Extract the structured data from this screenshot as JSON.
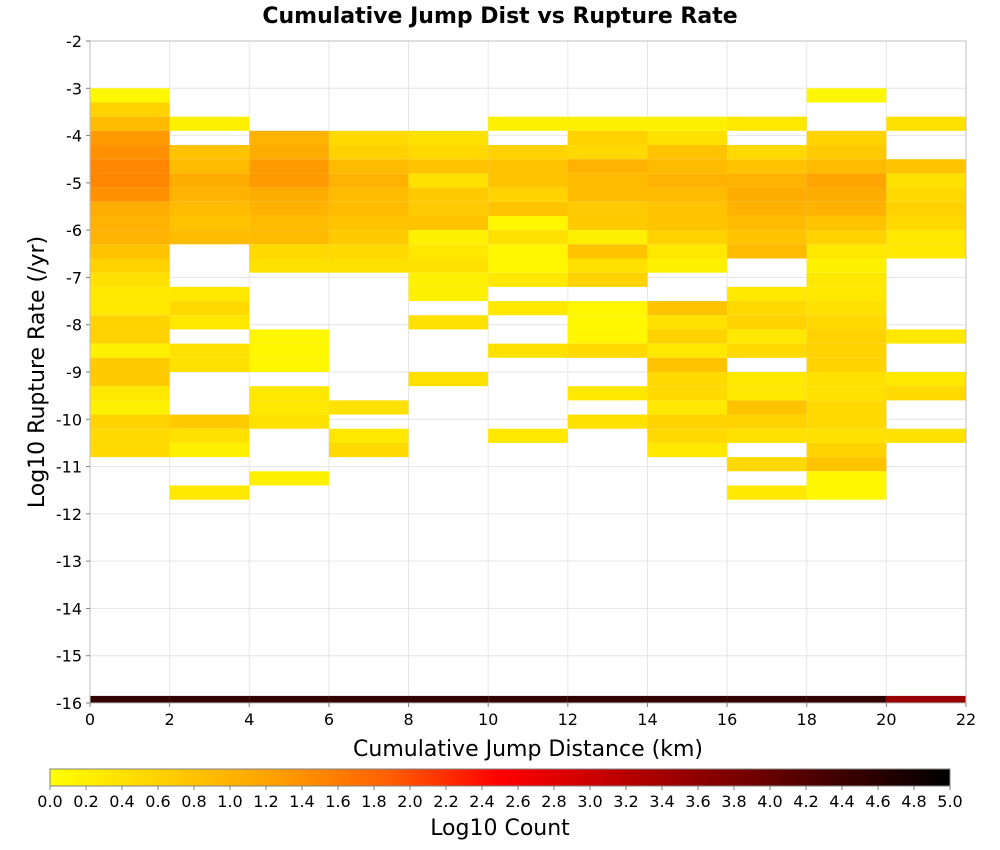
{
  "chart_data": {
    "type": "heatmap",
    "title": "Cumulative Jump Dist vs Rupture Rate",
    "xlabel": "Cumulative Jump Distance (km)",
    "ylabel": "Log10 Rupture Rate (/yr)",
    "xlim": [
      0,
      22
    ],
    "ylim": [
      -16,
      -2
    ],
    "x_ticks": [
      "0",
      "2",
      "4",
      "6",
      "8",
      "10",
      "12",
      "14",
      "16",
      "18",
      "20",
      "22"
    ],
    "y_ticks": [
      "-2",
      "-3",
      "-4",
      "-5",
      "-6",
      "-7",
      "-8",
      "-9",
      "-10",
      "-11",
      "-12",
      "-13",
      "-14",
      "-15",
      "-16"
    ],
    "grid": true,
    "bin_width_x": 2,
    "bin_height_y": 0.3,
    "colorbar": {
      "label": "Log10 Count",
      "range": [
        0,
        5
      ],
      "ticks": [
        "0.0",
        "0.2",
        "0.4",
        "0.6",
        "0.8",
        "1.0",
        "1.2",
        "1.4",
        "1.6",
        "1.8",
        "2.0",
        "2.2",
        "2.4",
        "2.6",
        "2.8",
        "3.0",
        "3.2",
        "3.4",
        "3.6",
        "3.8",
        "4.0",
        "4.2",
        "4.4",
        "4.6",
        "4.8",
        "5.0"
      ],
      "colors": [
        "#ffff00",
        "#ffd000",
        "#ffa000",
        "#ff6000",
        "#ff0000",
        "#c00000",
        "#800000",
        "#400000",
        "#000000"
      ]
    },
    "columns": [
      {
        "x0": 0,
        "x1": 2,
        "cells": [
          [
            -3.3,
            0.1
          ],
          [
            -3.6,
            0.6
          ],
          [
            -3.9,
            0.9
          ],
          [
            -4.2,
            1.3
          ],
          [
            -4.5,
            1.4
          ],
          [
            -4.8,
            1.5
          ],
          [
            -5.1,
            1.5
          ],
          [
            -5.4,
            1.4
          ],
          [
            -5.7,
            1.1
          ],
          [
            -6.0,
            1.0
          ],
          [
            -6.3,
            1.0
          ],
          [
            -6.6,
            0.8
          ],
          [
            -6.9,
            0.6
          ],
          [
            -7.2,
            0.4
          ],
          [
            -7.5,
            0.3
          ],
          [
            -7.8,
            0.3
          ],
          [
            -8.1,
            0.6
          ],
          [
            -8.4,
            0.6
          ],
          [
            -8.7,
            0.2
          ],
          [
            -9.0,
            0.7
          ],
          [
            -9.3,
            0.7
          ],
          [
            -9.6,
            0.3
          ],
          [
            -9.9,
            0.2
          ],
          [
            -10.2,
            0.6
          ],
          [
            -10.5,
            0.5
          ],
          [
            -10.8,
            0.5
          ]
        ]
      },
      {
        "x0": 2,
        "x1": 4,
        "cells": [
          [
            -3.9,
            0.2
          ],
          [
            -4.5,
            0.8
          ],
          [
            -4.8,
            0.9
          ],
          [
            -5.1,
            1.1
          ],
          [
            -5.4,
            1.0
          ],
          [
            -5.7,
            0.9
          ],
          [
            -6.0,
            0.8
          ],
          [
            -6.3,
            0.9
          ],
          [
            -7.5,
            0.3
          ],
          [
            -7.8,
            0.5
          ],
          [
            -8.1,
            0.3
          ],
          [
            -8.7,
            0.4
          ],
          [
            -9.0,
            0.4
          ],
          [
            -10.2,
            0.7
          ],
          [
            -10.5,
            0.4
          ],
          [
            -10.8,
            0.2
          ],
          [
            -11.7,
            0.3
          ]
        ]
      },
      {
        "x0": 4,
        "x1": 6,
        "cells": [
          [
            -4.2,
            1.0
          ],
          [
            -4.5,
            1.1
          ],
          [
            -4.8,
            1.3
          ],
          [
            -5.1,
            1.3
          ],
          [
            -5.4,
            1.1
          ],
          [
            -5.7,
            1.0
          ],
          [
            -6.0,
            0.9
          ],
          [
            -6.3,
            0.9
          ],
          [
            -6.6,
            0.5
          ],
          [
            -6.9,
            0.4
          ],
          [
            -8.4,
            0.1
          ],
          [
            -8.7,
            0.1
          ],
          [
            -9.0,
            0.1
          ],
          [
            -9.6,
            0.3
          ],
          [
            -9.9,
            0.3
          ],
          [
            -10.2,
            0.4
          ],
          [
            -11.4,
            0.2
          ]
        ]
      },
      {
        "x0": 6,
        "x1": 8,
        "cells": [
          [
            -4.2,
            0.5
          ],
          [
            -4.5,
            0.6
          ],
          [
            -4.8,
            0.9
          ],
          [
            -5.1,
            1.0
          ],
          [
            -5.4,
            0.9
          ],
          [
            -5.7,
            0.9
          ],
          [
            -6.0,
            0.8
          ],
          [
            -6.3,
            0.7
          ],
          [
            -6.6,
            0.5
          ],
          [
            -6.9,
            0.4
          ],
          [
            -9.9,
            0.4
          ],
          [
            -10.5,
            0.3
          ],
          [
            -10.8,
            0.5
          ]
        ]
      },
      {
        "x0": 8,
        "x1": 10,
        "cells": [
          [
            -4.2,
            0.4
          ],
          [
            -4.5,
            0.5
          ],
          [
            -4.8,
            0.8
          ],
          [
            -5.1,
            0.4
          ],
          [
            -5.4,
            0.7
          ],
          [
            -5.7,
            0.7
          ],
          [
            -6.0,
            0.8
          ],
          [
            -6.3,
            0.2
          ],
          [
            -6.6,
            0.3
          ],
          [
            -6.9,
            0.4
          ],
          [
            -7.2,
            0.2
          ],
          [
            -7.5,
            0.2
          ],
          [
            -8.1,
            0.4
          ],
          [
            -9.3,
            0.4
          ]
        ]
      },
      {
        "x0": 10,
        "x1": 12,
        "cells": [
          [
            -3.9,
            0.2
          ],
          [
            -4.5,
            0.6
          ],
          [
            -4.8,
            0.8
          ],
          [
            -5.1,
            0.8
          ],
          [
            -5.4,
            0.6
          ],
          [
            -5.7,
            0.8
          ],
          [
            -6.0,
            0.1
          ],
          [
            -6.3,
            0.4
          ],
          [
            -6.6,
            0.1
          ],
          [
            -6.9,
            0.1
          ],
          [
            -7.2,
            0.3
          ],
          [
            -7.8,
            0.3
          ],
          [
            -8.7,
            0.4
          ],
          [
            -10.5,
            0.3
          ]
        ]
      },
      {
        "x0": 12,
        "x1": 14,
        "cells": [
          [
            -3.9,
            0.2
          ],
          [
            -4.2,
            0.6
          ],
          [
            -4.5,
            0.5
          ],
          [
            -4.8,
            1.0
          ],
          [
            -5.1,
            0.9
          ],
          [
            -5.4,
            0.9
          ],
          [
            -5.7,
            0.7
          ],
          [
            -6.0,
            0.7
          ],
          [
            -6.3,
            0.2
          ],
          [
            -6.6,
            0.8
          ],
          [
            -6.9,
            0.4
          ],
          [
            -7.2,
            0.6
          ],
          [
            -7.8,
            0.1
          ],
          [
            -8.1,
            0.1
          ],
          [
            -8.4,
            0.1
          ],
          [
            -8.7,
            0.5
          ],
          [
            -9.6,
            0.3
          ],
          [
            -10.2,
            0.4
          ]
        ]
      },
      {
        "x0": 14,
        "x1": 16,
        "cells": [
          [
            -3.9,
            0.2
          ],
          [
            -4.2,
            0.4
          ],
          [
            -4.5,
            0.8
          ],
          [
            -4.8,
            0.9
          ],
          [
            -5.1,
            1.0
          ],
          [
            -5.4,
            0.9
          ],
          [
            -5.7,
            0.8
          ],
          [
            -6.0,
            0.8
          ],
          [
            -6.3,
            0.6
          ],
          [
            -6.6,
            0.3
          ],
          [
            -6.9,
            0.2
          ],
          [
            -7.8,
            0.8
          ],
          [
            -8.1,
            0.4
          ],
          [
            -8.4,
            0.6
          ],
          [
            -8.7,
            0.3
          ],
          [
            -9.0,
            0.8
          ],
          [
            -9.3,
            0.5
          ],
          [
            -9.6,
            0.5
          ],
          [
            -9.9,
            0.3
          ],
          [
            -10.2,
            0.6
          ],
          [
            -10.5,
            0.5
          ],
          [
            -10.8,
            0.3
          ]
        ]
      },
      {
        "x0": 16,
        "x1": 18,
        "cells": [
          [
            -3.9,
            0.3
          ],
          [
            -4.5,
            0.5
          ],
          [
            -4.8,
            0.8
          ],
          [
            -5.1,
            1.0
          ],
          [
            -5.4,
            1.1
          ],
          [
            -5.7,
            1.0
          ],
          [
            -6.0,
            0.9
          ],
          [
            -6.3,
            0.8
          ],
          [
            -6.6,
            0.9
          ],
          [
            -7.5,
            0.3
          ],
          [
            -7.8,
            0.5
          ],
          [
            -8.1,
            0.6
          ],
          [
            -8.4,
            0.3
          ],
          [
            -8.7,
            0.5
          ],
          [
            -9.3,
            0.3
          ],
          [
            -9.6,
            0.3
          ],
          [
            -9.9,
            0.8
          ],
          [
            -10.2,
            0.6
          ],
          [
            -10.5,
            0.4
          ],
          [
            -11.1,
            0.5
          ],
          [
            -11.7,
            0.3
          ]
        ]
      },
      {
        "x0": 18,
        "x1": 20,
        "cells": [
          [
            -3.3,
            0.1
          ],
          [
            -4.2,
            0.6
          ],
          [
            -4.5,
            0.7
          ],
          [
            -4.8,
            0.9
          ],
          [
            -5.1,
            1.2
          ],
          [
            -5.4,
            1.1
          ],
          [
            -5.7,
            1.0
          ],
          [
            -6.0,
            0.8
          ],
          [
            -6.3,
            0.6
          ],
          [
            -6.6,
            0.3
          ],
          [
            -6.9,
            0.2
          ],
          [
            -7.2,
            0.3
          ],
          [
            -7.5,
            0.3
          ],
          [
            -7.8,
            0.4
          ],
          [
            -8.1,
            0.5
          ],
          [
            -8.4,
            0.6
          ],
          [
            -8.7,
            0.6
          ],
          [
            -9.0,
            0.6
          ],
          [
            -9.3,
            0.4
          ],
          [
            -9.6,
            0.4
          ],
          [
            -9.9,
            0.5
          ],
          [
            -10.2,
            0.5
          ],
          [
            -10.5,
            0.4
          ],
          [
            -10.8,
            0.6
          ],
          [
            -11.1,
            0.8
          ],
          [
            -11.4,
            0.1
          ],
          [
            -11.7,
            0.1
          ]
        ]
      },
      {
        "x0": 20,
        "x1": 22,
        "cells": [
          [
            -3.9,
            0.4
          ],
          [
            -4.8,
            0.8
          ],
          [
            -5.1,
            0.4
          ],
          [
            -5.4,
            0.5
          ],
          [
            -5.7,
            0.6
          ],
          [
            -6.0,
            0.5
          ],
          [
            -6.3,
            0.3
          ],
          [
            -6.6,
            0.3
          ],
          [
            -8.4,
            0.3
          ],
          [
            -9.3,
            0.3
          ],
          [
            -9.6,
            0.5
          ],
          [
            -10.5,
            0.4
          ]
        ]
      }
    ],
    "bottom_row": {
      "y_from": -16,
      "y_to": -15.85,
      "values": [
        4.5,
        4.5,
        4.5,
        4.5,
        4.5,
        4.5,
        4.5,
        4.5,
        4.5,
        4.5,
        3.5
      ]
    }
  }
}
